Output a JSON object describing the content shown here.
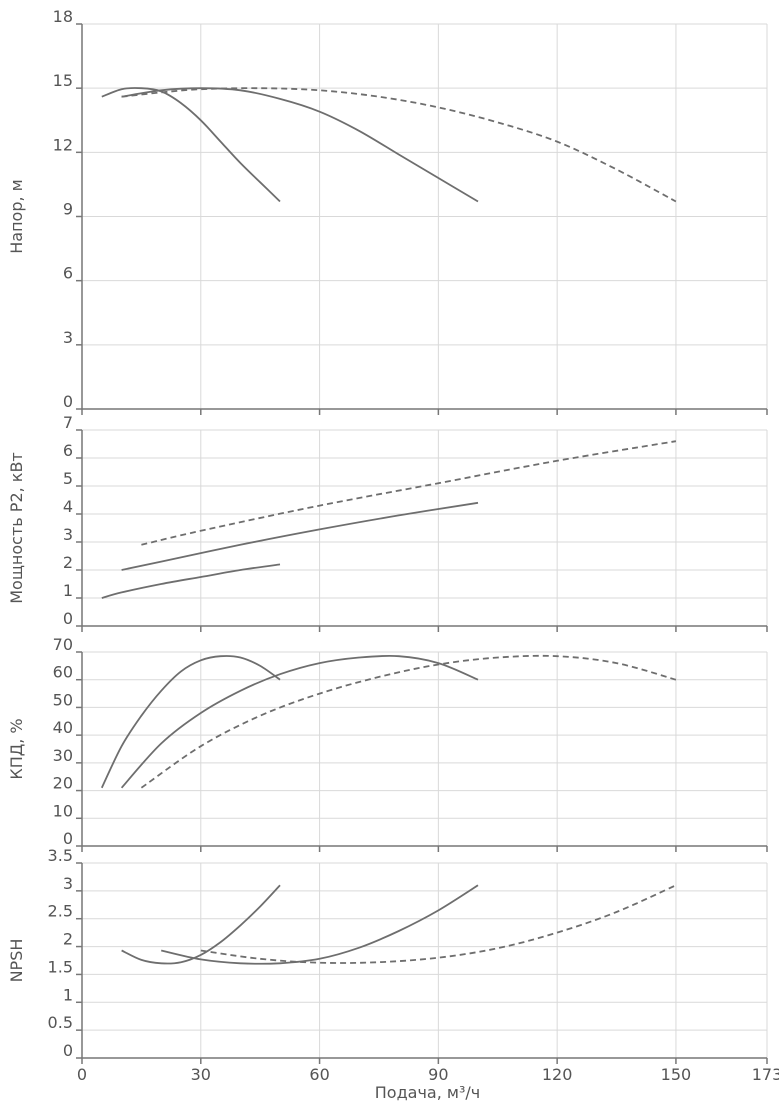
{
  "chart_data": [
    {
      "type": "line",
      "ylabel": "Напор, м",
      "xlim": [
        0,
        173
      ],
      "ylim": [
        0,
        18
      ],
      "x_ticks": [
        "0",
        "30",
        "60",
        "90",
        "120",
        "150",
        "173"
      ],
      "y_ticks": [
        "0",
        "3",
        "6",
        "9",
        "12",
        "15",
        "18"
      ],
      "grid": true,
      "series": [
        {
          "style": "solid",
          "x": [
            5,
            10,
            15,
            20,
            25,
            30,
            35,
            40,
            45,
            50
          ],
          "y": [
            14.6,
            14.95,
            15.0,
            14.85,
            14.3,
            13.5,
            12.5,
            11.5,
            10.6,
            9.7
          ]
        },
        {
          "style": "solid",
          "x": [
            10,
            20,
            30,
            40,
            50,
            60,
            70,
            80,
            90,
            100
          ],
          "y": [
            14.6,
            14.9,
            15.0,
            14.9,
            14.5,
            13.9,
            13.0,
            11.9,
            10.8,
            9.7
          ]
        },
        {
          "style": "dashed",
          "x": [
            10,
            20,
            30,
            45,
            60,
            75,
            90,
            105,
            120,
            135,
            150
          ],
          "y": [
            14.6,
            14.8,
            14.95,
            15.0,
            14.9,
            14.6,
            14.1,
            13.4,
            12.5,
            11.2,
            9.7
          ]
        }
      ]
    },
    {
      "type": "line",
      "ylabel": "Мощность P2, кВт",
      "xlim": [
        0,
        173
      ],
      "ylim": [
        0,
        7
      ],
      "x_ticks": [
        "0",
        "30",
        "60",
        "90",
        "120",
        "150",
        "173"
      ],
      "y_ticks": [
        "0",
        "1",
        "2",
        "3",
        "4",
        "5",
        "6",
        "7"
      ],
      "grid": true,
      "series": [
        {
          "style": "solid",
          "x": [
            5,
            10,
            20,
            30,
            40,
            50
          ],
          "y": [
            1.0,
            1.2,
            1.5,
            1.75,
            2.0,
            2.2
          ]
        },
        {
          "style": "solid",
          "x": [
            10,
            20,
            40,
            60,
            80,
            100
          ],
          "y": [
            2.0,
            2.3,
            2.9,
            3.45,
            3.95,
            4.4
          ]
        },
        {
          "style": "dashed",
          "x": [
            15,
            30,
            60,
            90,
            120,
            150
          ],
          "y": [
            2.9,
            3.4,
            4.3,
            5.1,
            5.9,
            6.6
          ]
        }
      ]
    },
    {
      "type": "line",
      "ylabel": "КПД, %",
      "xlim": [
        0,
        173
      ],
      "ylim": [
        0,
        70
      ],
      "x_ticks": [
        "0",
        "30",
        "60",
        "90",
        "120",
        "150",
        "173"
      ],
      "y_ticks": [
        "0",
        "10",
        "20",
        "30",
        "40",
        "50",
        "60",
        "70"
      ],
      "grid": true,
      "series": [
        {
          "style": "solid",
          "x": [
            5,
            10,
            15,
            20,
            25,
            30,
            35,
            40,
            45,
            50
          ],
          "y": [
            21,
            36,
            47,
            56,
            63,
            67,
            68.5,
            68,
            65,
            60
          ]
        },
        {
          "style": "solid",
          "x": [
            10,
            20,
            30,
            40,
            50,
            60,
            70,
            80,
            90,
            100
          ],
          "y": [
            21,
            37,
            48,
            56,
            62,
            66,
            68,
            68.5,
            66,
            60
          ]
        },
        {
          "style": "dashed",
          "x": [
            15,
            30,
            45,
            60,
            75,
            90,
            105,
            120,
            135,
            150
          ],
          "y": [
            21,
            36,
            47,
            55,
            61,
            65.5,
            68,
            68.5,
            66,
            60
          ]
        }
      ]
    },
    {
      "type": "line",
      "ylabel": "NPSH",
      "xlabel": "Подача, м³/ч",
      "xlim": [
        0,
        173
      ],
      "ylim": [
        0,
        3.5
      ],
      "x_ticks": [
        "0",
        "30",
        "60",
        "90",
        "120",
        "150",
        "173"
      ],
      "y_ticks": [
        "0",
        "0.5",
        "1",
        "1.5",
        "2",
        "2.5",
        "3",
        "3.5"
      ],
      "grid": true,
      "series": [
        {
          "style": "solid",
          "x": [
            10,
            15,
            20,
            25,
            30,
            35,
            40,
            45,
            50
          ],
          "y": [
            1.93,
            1.76,
            1.7,
            1.72,
            1.85,
            2.08,
            2.38,
            2.72,
            3.1
          ]
        },
        {
          "style": "solid",
          "x": [
            20,
            30,
            40,
            50,
            60,
            70,
            80,
            90,
            100
          ],
          "y": [
            1.93,
            1.77,
            1.7,
            1.7,
            1.78,
            1.98,
            2.28,
            2.65,
            3.1
          ]
        },
        {
          "style": "dashed",
          "x": [
            30,
            45,
            60,
            75,
            90,
            105,
            120,
            135,
            150
          ],
          "y": [
            1.93,
            1.78,
            1.71,
            1.72,
            1.8,
            1.97,
            2.25,
            2.62,
            3.1
          ]
        }
      ]
    }
  ]
}
